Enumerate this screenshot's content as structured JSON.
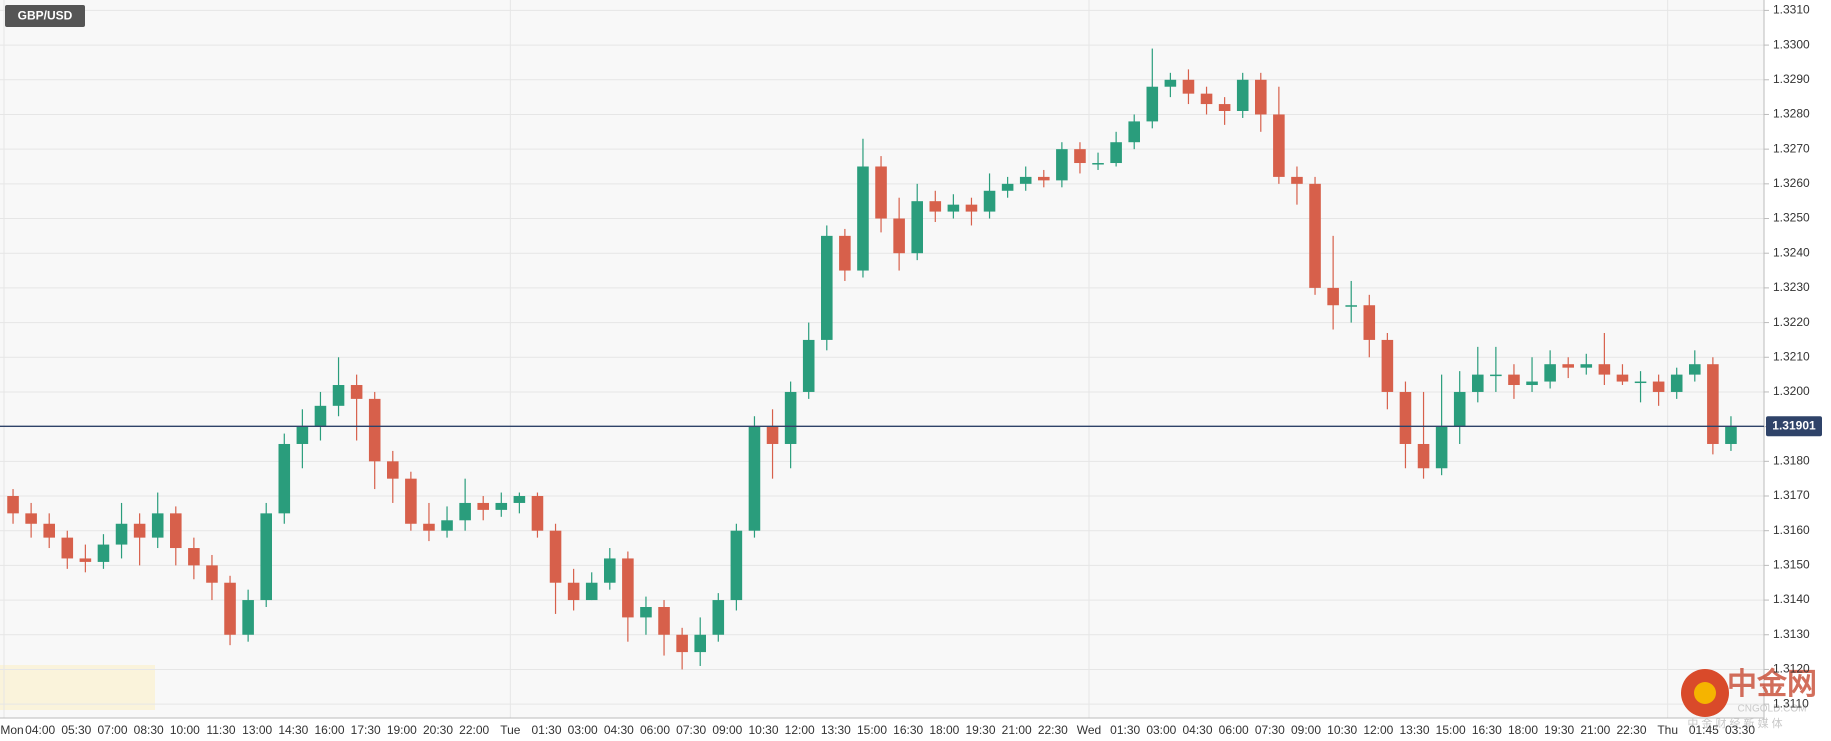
{
  "chart_data": {
    "type": "candlestick",
    "symbol": "GBP/USD",
    "x_labels": [
      "Mon",
      "04:00",
      "05:30",
      "07:00",
      "08:30",
      "10:00",
      "11:30",
      "13:00",
      "14:30",
      "16:00",
      "17:30",
      "19:00",
      "20:30",
      "22:00",
      "Tue",
      "01:30",
      "03:00",
      "04:30",
      "06:00",
      "07:30",
      "09:00",
      "10:30",
      "12:00",
      "13:30",
      "15:00",
      "16:30",
      "18:00",
      "19:30",
      "21:00",
      "22:30",
      "Wed",
      "01:30",
      "03:00",
      "04:30",
      "06:00",
      "07:30",
      "09:00",
      "10:30",
      "12:00",
      "13:30",
      "15:00",
      "16:30",
      "18:00",
      "19:30",
      "21:00",
      "22:30",
      "Thu",
      "01:45",
      "03:30"
    ],
    "open": [
      1.317,
      1.3165,
      1.3162,
      1.3158,
      1.3152,
      1.3151,
      1.3156,
      1.3162,
      1.3158,
      1.3165,
      1.3155,
      1.315,
      1.3145,
      1.313,
      1.314,
      1.3165,
      1.3185,
      1.319,
      1.3196,
      1.3202,
      1.3198,
      1.318,
      1.3175,
      1.3162,
      1.316,
      1.3163,
      1.3168,
      1.3166,
      1.3168,
      1.317,
      1.316,
      1.3145,
      1.314,
      1.3145,
      1.3152,
      1.3135,
      1.3138,
      1.313,
      1.3125,
      1.313,
      1.314,
      1.316,
      1.319,
      1.3185,
      1.32,
      1.3215,
      1.3245,
      1.3235,
      1.3265,
      1.325,
      1.324,
      1.3255,
      1.3252,
      1.3254,
      1.3252,
      1.3258,
      1.326,
      1.3262,
      1.3261,
      1.327,
      1.3266,
      1.3266,
      1.3272,
      1.3278,
      1.3288,
      1.329,
      1.3286,
      1.3283,
      1.3281,
      1.329,
      1.328,
      1.3262,
      1.326,
      1.323,
      1.3225,
      1.3225,
      1.3215,
      1.32,
      1.3185,
      1.3178,
      1.319,
      1.32,
      1.3205,
      1.3205,
      1.3202,
      1.3203,
      1.3208,
      1.3207,
      1.3208,
      1.3205,
      1.3203,
      1.3203,
      1.32,
      1.3205,
      1.3208,
      1.3185
    ],
    "high": [
      1.3172,
      1.3168,
      1.3165,
      1.316,
      1.3156,
      1.3159,
      1.3168,
      1.3165,
      1.3171,
      1.3167,
      1.3158,
      1.3153,
      1.3147,
      1.3143,
      1.3168,
      1.3188,
      1.3195,
      1.32,
      1.321,
      1.3205,
      1.32,
      1.3183,
      1.3177,
      1.3168,
      1.3167,
      1.3175,
      1.317,
      1.3171,
      1.3171,
      1.3171,
      1.3162,
      1.3149,
      1.3148,
      1.3155,
      1.3154,
      1.3141,
      1.314,
      1.3132,
      1.3135,
      1.3142,
      1.3162,
      1.3193,
      1.3195,
      1.3203,
      1.322,
      1.3248,
      1.3247,
      1.3273,
      1.3268,
      1.3256,
      1.326,
      1.3258,
      1.3257,
      1.3256,
      1.3263,
      1.3262,
      1.3265,
      1.3264,
      1.3272,
      1.3272,
      1.3269,
      1.3275,
      1.328,
      1.3299,
      1.3292,
      1.3293,
      1.3288,
      1.3285,
      1.3292,
      1.3292,
      1.3288,
      1.3265,
      1.3262,
      1.3245,
      1.3232,
      1.3228,
      1.3217,
      1.3203,
      1.32,
      1.3205,
      1.3206,
      1.3213,
      1.3213,
      1.3208,
      1.321,
      1.3212,
      1.321,
      1.3211,
      1.3217,
      1.3208,
      1.3206,
      1.3205,
      1.3207,
      1.3212,
      1.321,
      1.3193
    ],
    "low": [
      1.3162,
      1.3158,
      1.3155,
      1.3149,
      1.3148,
      1.3149,
      1.3152,
      1.315,
      1.3155,
      1.315,
      1.3146,
      1.314,
      1.3127,
      1.3128,
      1.3138,
      1.3162,
      1.3178,
      1.3186,
      1.3193,
      1.3186,
      1.3172,
      1.3168,
      1.316,
      1.3157,
      1.3158,
      1.316,
      1.3163,
      1.3164,
      1.3165,
      1.3158,
      1.3136,
      1.3137,
      1.314,
      1.3143,
      1.3128,
      1.313,
      1.3124,
      1.312,
      1.3121,
      1.3128,
      1.3137,
      1.3158,
      1.3175,
      1.3178,
      1.3198,
      1.3212,
      1.3232,
      1.3233,
      1.3246,
      1.3235,
      1.3238,
      1.3249,
      1.325,
      1.3248,
      1.325,
      1.3256,
      1.3258,
      1.3259,
      1.3259,
      1.3263,
      1.3264,
      1.3265,
      1.327,
      1.3276,
      1.3285,
      1.3283,
      1.328,
      1.3277,
      1.3279,
      1.3275,
      1.326,
      1.3254,
      1.3228,
      1.3218,
      1.322,
      1.321,
      1.3195,
      1.3178,
      1.3175,
      1.3176,
      1.3185,
      1.3197,
      1.32,
      1.3198,
      1.32,
      1.3201,
      1.3204,
      1.3205,
      1.3202,
      1.3202,
      1.3197,
      1.3196,
      1.3198,
      1.3203,
      1.3182,
      1.3183
    ],
    "close": [
      1.3165,
      1.3162,
      1.3158,
      1.3152,
      1.3151,
      1.3156,
      1.3162,
      1.3158,
      1.3165,
      1.3155,
      1.315,
      1.3145,
      1.313,
      1.314,
      1.3165,
      1.3185,
      1.319,
      1.3196,
      1.3202,
      1.3198,
      1.318,
      1.3175,
      1.3162,
      1.316,
      1.3163,
      1.3168,
      1.3166,
      1.3168,
      1.317,
      1.316,
      1.3145,
      1.314,
      1.3145,
      1.3152,
      1.3135,
      1.3138,
      1.313,
      1.3125,
      1.313,
      1.314,
      1.316,
      1.319,
      1.3185,
      1.32,
      1.3215,
      1.3245,
      1.3235,
      1.3265,
      1.325,
      1.324,
      1.3255,
      1.3252,
      1.3254,
      1.3252,
      1.3258,
      1.326,
      1.3262,
      1.3261,
      1.327,
      1.3266,
      1.3266,
      1.3272,
      1.3278,
      1.3288,
      1.329,
      1.3286,
      1.3283,
      1.3281,
      1.329,
      1.328,
      1.3262,
      1.326,
      1.323,
      1.3225,
      1.3225,
      1.3215,
      1.32,
      1.3185,
      1.3178,
      1.319,
      1.32,
      1.3205,
      1.3205,
      1.3202,
      1.3203,
      1.3208,
      1.3207,
      1.3208,
      1.3205,
      1.3203,
      1.3203,
      1.32,
      1.3205,
      1.3208,
      1.3185,
      1.319
    ],
    "up_color": "#2a9d7c",
    "down_color": "#d7604b",
    "ylim": [
      1.3106,
      1.3313
    ],
    "yticks": [
      {
        "value": 1.311,
        "label": "1.3110"
      },
      {
        "value": 1.312,
        "label": "1.3120"
      },
      {
        "value": 1.313,
        "label": "1.3130"
      },
      {
        "value": 1.314,
        "label": "1.3140"
      },
      {
        "value": 1.315,
        "label": "1.3150"
      },
      {
        "value": 1.316,
        "label": "1.3160"
      },
      {
        "value": 1.317,
        "label": "1.3170"
      },
      {
        "value": 1.318,
        "label": "1.3180"
      },
      {
        "value": 1.319,
        "label": "1.3190"
      },
      {
        "value": 1.32,
        "label": "1.3200"
      },
      {
        "value": 1.321,
        "label": "1.3210"
      },
      {
        "value": 1.322,
        "label": "1.3220"
      },
      {
        "value": 1.323,
        "label": "1.3230"
      },
      {
        "value": 1.324,
        "label": "1.3240"
      },
      {
        "value": 1.325,
        "label": "1.3250"
      },
      {
        "value": 1.326,
        "label": "1.3260"
      },
      {
        "value": 1.327,
        "label": "1.3270"
      },
      {
        "value": 1.328,
        "label": "1.3280"
      },
      {
        "value": 1.329,
        "label": "1.3290"
      },
      {
        "value": 1.33,
        "label": "1.3300"
      },
      {
        "value": 1.331,
        "label": "1.3310"
      }
    ],
    "grid": true,
    "last_price": 1.31901,
    "price_line_color": "#2f4369",
    "watermark": {
      "logo": "中金网",
      "site": "CNGOLD.COM",
      "tagline": "中 金 财 经 新 媒 体"
    }
  }
}
